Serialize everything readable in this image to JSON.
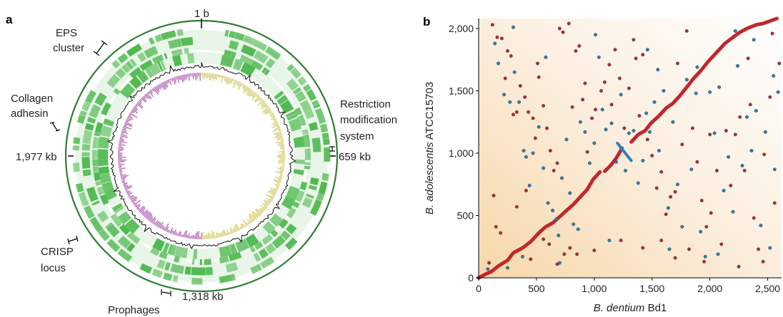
{
  "panels": {
    "a": {
      "label": "a",
      "positions": {
        "top": "1 b",
        "right": "659 kb",
        "bottom": "1,318 kb",
        "left": "1,977 kb"
      },
      "annotations": {
        "eps": [
          "EPS",
          "cluster"
        ],
        "collagen": [
          "Collagen",
          "adhesin"
        ],
        "restriction": [
          "Restriction",
          "modification",
          "system"
        ],
        "crisp": [
          "CRISP",
          "locus"
        ],
        "prophages": [
          "Prophages"
        ]
      },
      "colors": {
        "outer_ring": "#2e7d32",
        "gene_track": "#4cb84c",
        "gc_line": "#111111",
        "skew_pos": "#c9c04a",
        "skew_neg": "#a040a0"
      }
    },
    "b": {
      "label": "b",
      "xlabel_italic": "B. dentium",
      "xlabel_rest": " Bd1",
      "ylabel_italic": "B. adolescentis",
      "ylabel_rest": " ATCC15703"
    }
  },
  "chart_data": {
    "type": "scatter",
    "x_ticks": [
      "0",
      "500",
      "1,000",
      "1,500",
      "2,000",
      "2,500"
    ],
    "y_ticks": [
      "0",
      "500",
      "1,000",
      "1,500",
      "2,000"
    ],
    "xlim": [
      0,
      2620
    ],
    "ylim": [
      0,
      2080
    ],
    "grid": false,
    "series": [
      {
        "color": "#c0282d",
        "segments": [
          [
            [
              0,
              0
            ],
            [
              60,
              30
            ],
            [
              110,
              50
            ],
            [
              170,
              95
            ],
            [
              250,
              140
            ],
            [
              300,
              200
            ],
            [
              380,
              240
            ],
            [
              450,
              290
            ],
            [
              520,
              360
            ],
            [
              580,
              410
            ],
            [
              640,
              440
            ],
            [
              700,
              490
            ],
            [
              760,
              540
            ],
            [
              820,
              590
            ],
            [
              880,
              650
            ],
            [
              940,
              710
            ],
            [
              990,
              790
            ],
            [
              1050,
              850
            ]
          ],
          [
            [
              1090,
              855
            ],
            [
              1140,
              900
            ],
            [
              1190,
              960
            ],
            [
              1240,
              1040
            ]
          ],
          [
            [
              1320,
              1090
            ],
            [
              1380,
              1150
            ],
            [
              1440,
              1180
            ],
            [
              1490,
              1240
            ],
            [
              1560,
              1300
            ],
            [
              1620,
              1360
            ],
            [
              1680,
              1400
            ],
            [
              1740,
              1460
            ],
            [
              1800,
              1530
            ],
            [
              1860,
              1600
            ],
            [
              1920,
              1660
            ],
            [
              1980,
              1730
            ],
            [
              2050,
              1800
            ],
            [
              2130,
              1880
            ],
            [
              2200,
              1930
            ],
            [
              2260,
              1970
            ],
            [
              2320,
              2000
            ],
            [
              2400,
              2030
            ],
            [
              2460,
              2040
            ],
            [
              2520,
              2060
            ],
            [
              2580,
              2080
            ]
          ]
        ],
        "scatter": [
          [
            120,
            2030
          ],
          [
            160,
            1930
          ],
          [
            200,
            1920
          ],
          [
            230,
            1600
          ],
          [
            250,
            1820
          ],
          [
            280,
            1780
          ],
          [
            300,
            1310
          ],
          [
            330,
            1330
          ],
          [
            360,
            1540
          ],
          [
            400,
            1450
          ],
          [
            430,
            1330
          ],
          [
            470,
            1280
          ],
          [
            490,
            1120
          ],
          [
            520,
            1610
          ],
          [
            560,
            1380
          ],
          [
            590,
            1200
          ],
          [
            620,
            1020
          ],
          [
            650,
            860
          ],
          [
            680,
            920
          ],
          [
            700,
            2000
          ],
          [
            730,
            1970
          ],
          [
            780,
            2040
          ],
          [
            810,
            1370
          ],
          [
            840,
            1820
          ],
          [
            870,
            1860
          ],
          [
            900,
            1430
          ],
          [
            940,
            1010
          ],
          [
            980,
            1280
          ],
          [
            1010,
            1350
          ],
          [
            1060,
            1500
          ],
          [
            1090,
            1570
          ],
          [
            1130,
            1710
          ],
          [
            1180,
            1830
          ],
          [
            1220,
            1600
          ],
          [
            1260,
            1200
          ],
          [
            1300,
            1520
          ],
          [
            1340,
            1910
          ],
          [
            1390,
            1300
          ],
          [
            1420,
            1790
          ],
          [
            1460,
            1110
          ],
          [
            1500,
            980
          ],
          [
            1540,
            720
          ],
          [
            1580,
            850
          ],
          [
            1620,
            510
          ],
          [
            1660,
            650
          ],
          [
            1700,
            690
          ],
          [
            1760,
            1070
          ],
          [
            1800,
            1980
          ],
          [
            1850,
            1200
          ],
          [
            1890,
            930
          ],
          [
            1930,
            620
          ],
          [
            1970,
            410
          ],
          [
            2010,
            520
          ],
          [
            2060,
            860
          ],
          [
            2100,
            270
          ],
          [
            2140,
            1180
          ],
          [
            2180,
            740
          ],
          [
            2220,
            1150
          ],
          [
            2260,
            1290
          ],
          [
            2300,
            860
          ],
          [
            2350,
            1390
          ],
          [
            2380,
            480
          ],
          [
            2420,
            230
          ],
          [
            2470,
            990
          ],
          [
            2520,
            1450
          ],
          [
            2560,
            600
          ],
          [
            2600,
            1720
          ],
          [
            150,
            410
          ],
          [
            190,
            360
          ],
          [
            330,
            570
          ],
          [
            410,
            700
          ],
          [
            450,
            150
          ],
          [
            560,
            310
          ],
          [
            610,
            270
          ],
          [
            680,
            110
          ],
          [
            740,
            190
          ],
          [
            790,
            240
          ],
          [
            850,
            190
          ],
          [
            1000,
            220
          ],
          [
            1150,
            1390
          ],
          [
            1230,
            300
          ],
          [
            1420,
            240
          ],
          [
            1580,
            300
          ],
          [
            1700,
            160
          ],
          [
            1820,
            230
          ],
          [
            1950,
            130
          ],
          [
            2250,
            90
          ],
          [
            2460,
            130
          ],
          [
            90,
            120
          ],
          [
            130,
            660
          ],
          [
            510,
            1720
          ],
          [
            920,
            1560
          ],
          [
            1360,
            1760
          ],
          [
            1720,
            1720
          ],
          [
            2000,
            1150
          ],
          [
            2330,
            1760
          ],
          [
            2540,
            1960
          ]
        ]
      },
      {
        "color": "#2d82b5",
        "segments": [
          [
            [
              1200,
              1080
            ],
            [
              1320,
              940
            ]
          ]
        ],
        "scatter": [
          [
            80,
            70
          ],
          [
            140,
            1880
          ],
          [
            170,
            1720
          ],
          [
            220,
            1470
          ],
          [
            270,
            1410
          ],
          [
            310,
            1650
          ],
          [
            350,
            1410
          ],
          [
            390,
            1020
          ],
          [
            410,
            970
          ],
          [
            440,
            740
          ],
          [
            470,
            1000
          ],
          [
            520,
            1210
          ],
          [
            560,
            880
          ],
          [
            600,
            600
          ],
          [
            640,
            540
          ],
          [
            670,
            470
          ],
          [
            690,
            340
          ],
          [
            720,
            800
          ],
          [
            760,
            1110
          ],
          [
            790,
            680
          ],
          [
            820,
            430
          ],
          [
            860,
            390
          ],
          [
            880,
            1250
          ],
          [
            920,
            1170
          ],
          [
            960,
            920
          ],
          [
            1000,
            1080
          ],
          [
            1040,
            1770
          ],
          [
            1070,
            1350
          ],
          [
            1100,
            1190
          ],
          [
            1150,
            1240
          ],
          [
            1190,
            930
          ],
          [
            1230,
            1470
          ],
          [
            1270,
            860
          ],
          [
            1300,
            1160
          ],
          [
            1340,
            1180
          ],
          [
            1380,
            760
          ],
          [
            1420,
            940
          ],
          [
            1450,
            1320
          ],
          [
            1480,
            1170
          ],
          [
            1520,
            1410
          ],
          [
            1560,
            1020
          ],
          [
            1600,
            1500
          ],
          [
            1640,
            560
          ],
          [
            1680,
            1250
          ],
          [
            1720,
            750
          ],
          [
            1760,
            410
          ],
          [
            1800,
            1590
          ],
          [
            1840,
            870
          ],
          [
            1880,
            1480
          ],
          [
            1920,
            370
          ],
          [
            1960,
            170
          ],
          [
            2000,
            1490
          ],
          [
            2040,
            1160
          ],
          [
            2080,
            1530
          ],
          [
            2120,
            700
          ],
          [
            2160,
            970
          ],
          [
            2200,
            530
          ],
          [
            2240,
            1700
          ],
          [
            2280,
            900
          ],
          [
            2320,
            1290
          ],
          [
            2360,
            1020
          ],
          [
            2400,
            1340
          ],
          [
            2440,
            420
          ],
          [
            2480,
            1170
          ],
          [
            2520,
            240
          ],
          [
            2560,
            870
          ],
          [
            2590,
            1490
          ],
          [
            380,
            170
          ],
          [
            250,
            80
          ],
          [
            700,
            120
          ],
          [
            1130,
            300
          ],
          [
            1650,
            230
          ],
          [
            2070,
            190
          ],
          [
            2550,
            1620
          ],
          [
            2380,
            1910
          ],
          [
            1890,
            1690
          ],
          [
            1460,
            1830
          ],
          [
            1010,
            1950
          ],
          [
            580,
            1770
          ],
          [
            300,
            2010
          ],
          [
            2220,
            1980
          ],
          [
            1550,
            1670
          ]
        ]
      }
    ]
  }
}
